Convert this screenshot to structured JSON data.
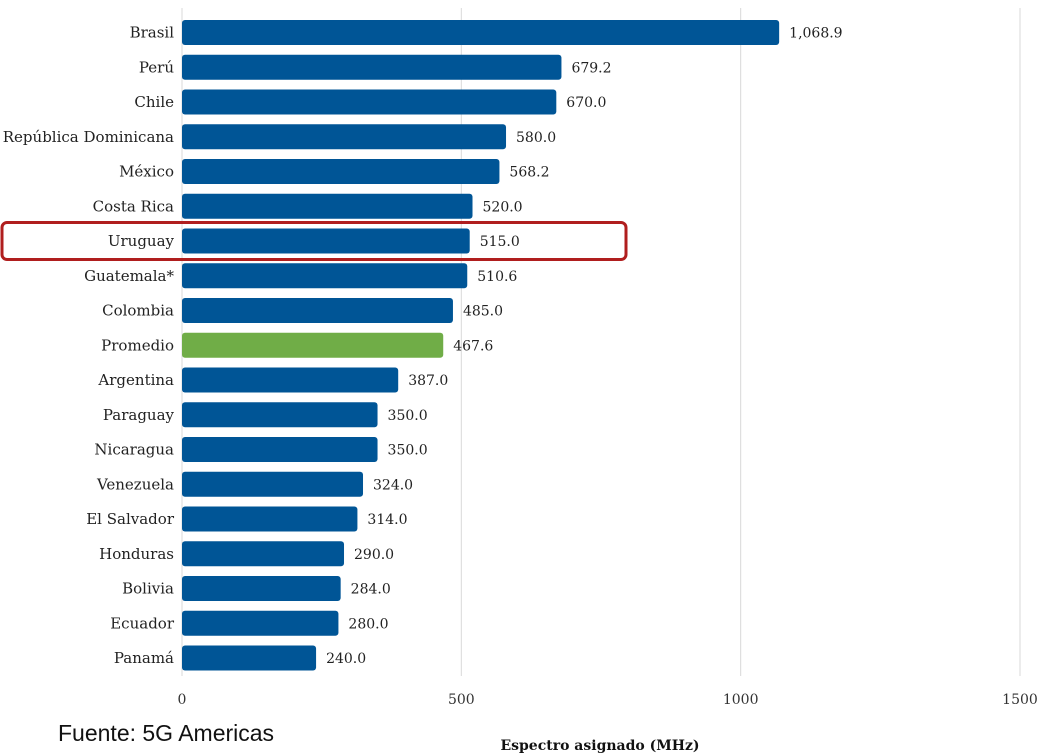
{
  "chart_data": {
    "type": "bar",
    "orientation": "horizontal",
    "categories": [
      "Brasil",
      "Perú",
      "Chile",
      "República Dominicana",
      "México",
      "Costa Rica",
      "Uruguay",
      "Guatemala*",
      "Colombia",
      "Promedio",
      "Argentina",
      "Paraguay",
      "Nicaragua",
      "Venezuela",
      "El Salvador",
      "Honduras",
      "Bolivia",
      "Ecuador",
      "Panamá"
    ],
    "values": [
      1068.9,
      679.2,
      670.0,
      580.0,
      568.2,
      520.0,
      515.0,
      510.6,
      485.0,
      467.6,
      387.0,
      350.0,
      350.0,
      324.0,
      314.0,
      290.0,
      284.0,
      280.0,
      240.0
    ],
    "value_labels": [
      "1,068.9",
      "679.2",
      "670.0",
      "580.0",
      "568.2",
      "520.0",
      "515.0",
      "510.6",
      "485.0",
      "467.6",
      "387.0",
      "350.0",
      "350.0",
      "324.0",
      "314.0",
      "290.0",
      "284.0",
      "280.0",
      "240.0"
    ],
    "xlabel": "Espectro asignado (MHz)",
    "xlim": [
      0,
      1500
    ],
    "xticks": [
      "0",
      "500",
      "1000",
      "1500"
    ],
    "grid": "vertical",
    "colors": {
      "bar": "#005596",
      "highlight_bar": "#70AD47",
      "outline": "#B01E1E"
    },
    "highlight_category": "Promedio",
    "outlined_category": "Uruguay"
  },
  "source_note": "Fuente: 5G Americas"
}
